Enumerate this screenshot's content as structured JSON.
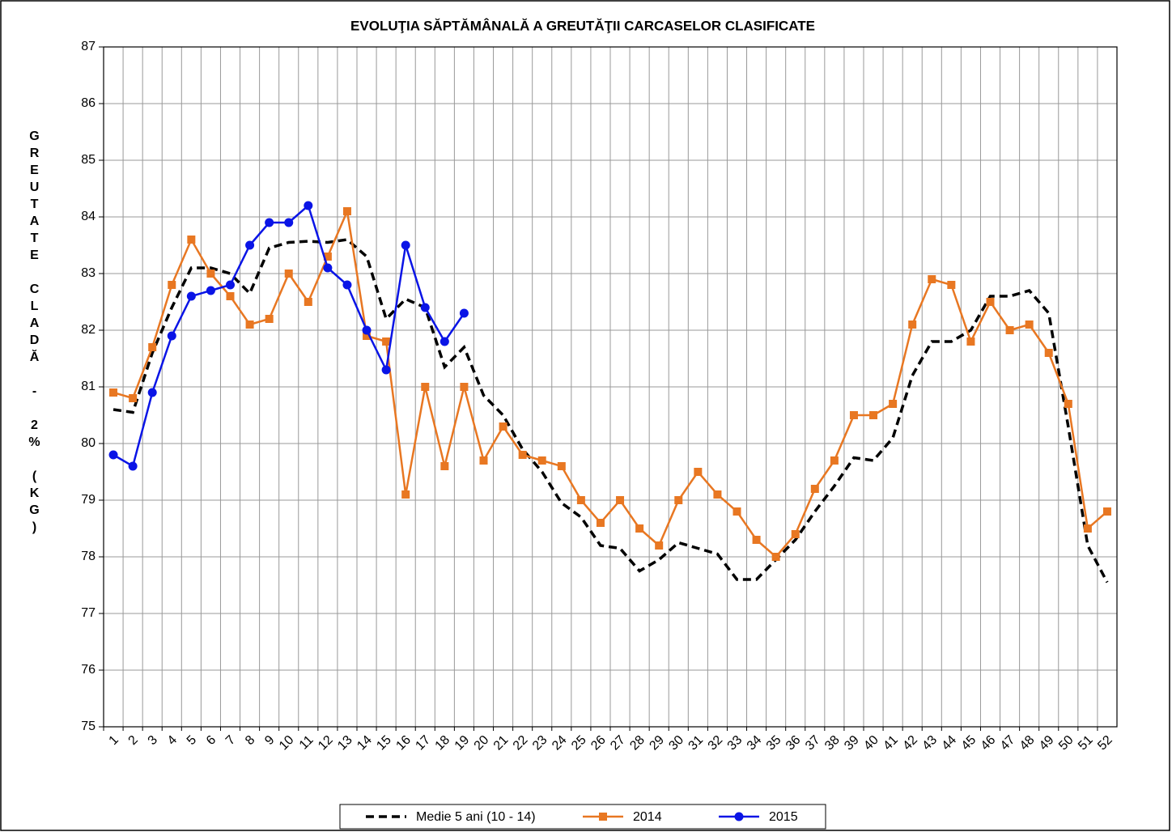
{
  "chart_data": {
    "type": "line",
    "title": "EVOLUŢIA SĂPTĂMÂNALĂ  A GREUTĂŢII CARCASELOR CLASIFICATE",
    "y_label": "GREUTATE CLADĂ - 2% (KG)",
    "categories": [
      "1",
      "2",
      "3",
      "4",
      "5",
      "6",
      "7",
      "8",
      "9",
      "10",
      "11",
      "12",
      "13",
      "14",
      "15",
      "16",
      "17",
      "18",
      "19",
      "20",
      "21",
      "22",
      "23",
      "24",
      "25",
      "26",
      "27",
      "28",
      "29",
      "30",
      "31",
      "32",
      "33",
      "34",
      "35",
      "36",
      "37",
      "38",
      "39",
      "40",
      "41",
      "42",
      "43",
      "44",
      "45",
      "46",
      "47",
      "48",
      "49",
      "50",
      "51",
      "52"
    ],
    "ylim": [
      75,
      87
    ],
    "yticks": [
      75,
      76,
      77,
      78,
      79,
      80,
      81,
      82,
      83,
      84,
      85,
      86,
      87
    ],
    "grid": true,
    "legend": "bottom",
    "series": [
      {
        "name": "Medie 5 ani (10 - 14)",
        "color": "#000000",
        "dashed": true,
        "marker": "none",
        "values": [
          80.6,
          80.55,
          81.6,
          82.4,
          83.1,
          83.1,
          83.0,
          82.65,
          83.45,
          83.55,
          83.57,
          83.55,
          83.6,
          83.3,
          82.2,
          82.55,
          82.4,
          81.35,
          81.7,
          80.85,
          80.5,
          79.9,
          79.5,
          78.95,
          78.7,
          78.2,
          78.15,
          77.75,
          77.95,
          78.25,
          78.15,
          78.05,
          77.6,
          77.6,
          77.95,
          78.3,
          78.8,
          79.25,
          79.75,
          79.7,
          80.1,
          81.2,
          81.8,
          81.8,
          82.0,
          82.6,
          82.6,
          82.7,
          82.3,
          80.3,
          78.2,
          77.55
        ]
      },
      {
        "name": "2014",
        "color": "#e87722",
        "dashed": false,
        "marker": "square",
        "values": [
          80.9,
          80.8,
          81.7,
          82.8,
          83.6,
          83.0,
          82.6,
          82.1,
          82.2,
          83.0,
          82.5,
          83.3,
          84.1,
          81.9,
          81.8,
          79.1,
          81.0,
          79.6,
          81.0,
          79.7,
          80.3,
          79.8,
          79.7,
          79.6,
          79.0,
          78.6,
          79.0,
          78.5,
          78.2,
          79.0,
          79.5,
          79.1,
          78.8,
          78.3,
          78.0,
          78.4,
          79.2,
          79.7,
          80.5,
          80.5,
          80.7,
          82.1,
          82.9,
          82.8,
          81.8,
          82.5,
          82.0,
          82.1,
          81.6,
          80.7,
          78.5,
          78.8
        ]
      },
      {
        "name": "2015",
        "color": "#0a14e6",
        "dashed": false,
        "marker": "circle",
        "values": [
          79.8,
          79.6,
          80.9,
          81.9,
          82.6,
          82.7,
          82.8,
          83.5,
          83.9,
          83.9,
          84.2,
          83.1,
          82.8,
          82.0,
          81.3,
          83.5,
          82.4,
          81.8,
          82.3,
          null,
          null,
          null,
          null,
          null,
          null,
          null,
          null,
          null,
          null,
          null,
          null,
          null,
          null,
          null,
          null,
          null,
          null,
          null,
          null,
          null,
          null,
          null,
          null,
          null,
          null,
          null,
          null,
          null,
          null,
          null,
          null,
          null
        ]
      }
    ]
  }
}
